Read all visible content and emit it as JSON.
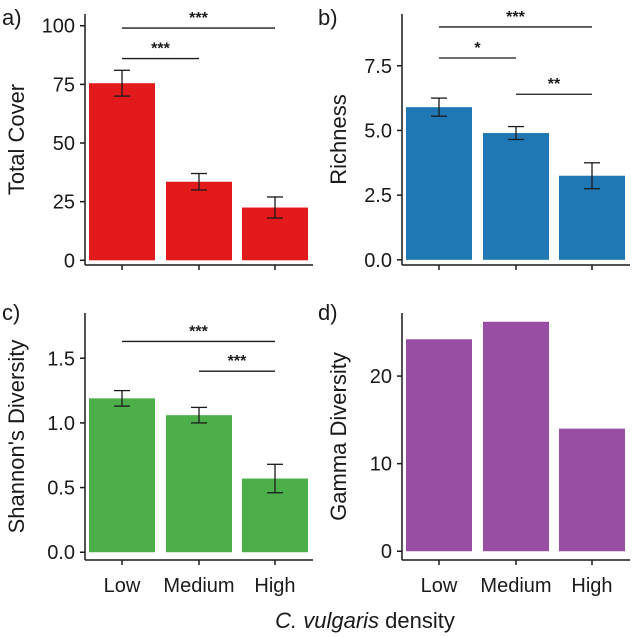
{
  "figure": {
    "xlabel_italic": "C. vulgaris",
    "xlabel_rest": " density",
    "categories": [
      "Low",
      "Medium",
      "High"
    ]
  },
  "chart_data": [
    {
      "id": "a",
      "panel_label": "a)",
      "type": "bar",
      "ylabel": "Total Cover",
      "categories": [
        "Low",
        "Medium",
        "High"
      ],
      "values": [
        75.5,
        33.5,
        22.5
      ],
      "errors": [
        5.5,
        3.5,
        4.5
      ],
      "ylim": [
        -2,
        105
      ],
      "yticks": [
        0,
        25,
        50,
        75,
        100
      ],
      "ytick_labels": [
        "0",
        "25",
        "50",
        "75",
        "100"
      ],
      "color": "#e31a1c",
      "show_xticklabels": false,
      "significance": [
        {
          "from": 0,
          "to": 1,
          "label": "***",
          "y": 86
        },
        {
          "from": 0,
          "to": 2,
          "label": "***",
          "y": 99
        }
      ]
    },
    {
      "id": "b",
      "panel_label": "b)",
      "type": "bar",
      "ylabel": "Richness",
      "categories": [
        "Low",
        "Medium",
        "High"
      ],
      "values": [
        5.9,
        4.9,
        3.25
      ],
      "errors": [
        0.35,
        0.25,
        0.5
      ],
      "ylim": [
        -0.2,
        9.5
      ],
      "yticks": [
        0,
        2.5,
        5,
        7.5
      ],
      "ytick_labels": [
        "0.0",
        "2.5",
        "5.0",
        "7.5"
      ],
      "color": "#1f78b4",
      "show_xticklabels": false,
      "significance": [
        {
          "from": 0,
          "to": 1,
          "label": "*",
          "y": 7.8
        },
        {
          "from": 1,
          "to": 2,
          "label": "**",
          "y": 6.4
        },
        {
          "from": 0,
          "to": 2,
          "label": "***",
          "y": 9.0
        }
      ]
    },
    {
      "id": "c",
      "panel_label": "c)",
      "type": "bar",
      "ylabel": "Shannon's Diversity",
      "categories": [
        "Low",
        "Medium",
        "High"
      ],
      "values": [
        1.19,
        1.06,
        0.57
      ],
      "errors": [
        0.06,
        0.06,
        0.11
      ],
      "ylim": [
        -0.06,
        1.85
      ],
      "yticks": [
        0,
        0.5,
        1,
        1.5
      ],
      "ytick_labels": [
        "0.0",
        "0.5",
        "1.0",
        "1.5"
      ],
      "color": "#4daf4a",
      "show_xticklabels": true,
      "significance": [
        {
          "from": 1,
          "to": 2,
          "label": "***",
          "y": 1.4
        },
        {
          "from": 0,
          "to": 2,
          "label": "***",
          "y": 1.63
        }
      ]
    },
    {
      "id": "d",
      "panel_label": "d)",
      "type": "bar",
      "ylabel": "Gamma Diversity",
      "categories": [
        "Low",
        "Medium",
        "High"
      ],
      "values": [
        24.2,
        26.2,
        14
      ],
      "errors": null,
      "ylim": [
        -1,
        27.2
      ],
      "yticks": [
        0,
        10,
        20
      ],
      "ytick_labels": [
        "0",
        "10",
        "20"
      ],
      "color": "#984ea3",
      "show_xticklabels": true,
      "significance": []
    }
  ]
}
